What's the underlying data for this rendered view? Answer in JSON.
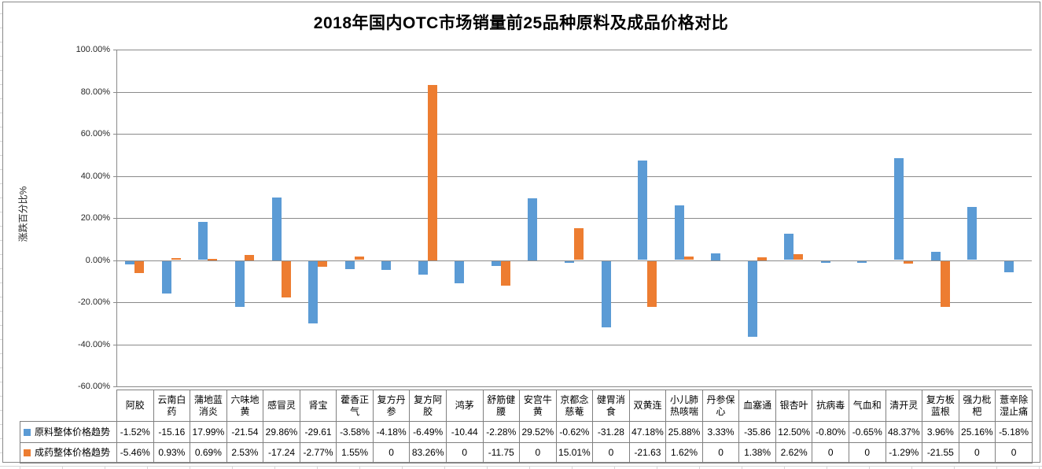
{
  "chart_data": {
    "type": "bar",
    "title": "2018年国内OTC市场销量前25品种原料及成品价格对比",
    "xlabel": "",
    "ylabel": "涨跌百分比%",
    "ylim": [
      -60,
      100
    ],
    "y_tick_step": 20,
    "y_tick_labels": [
      "100.00%",
      "80.00%",
      "60.00%",
      "40.00%",
      "20.00%",
      "0.00%",
      "-20.00%",
      "-40.00%",
      "-60.00%"
    ],
    "grid": true,
    "legend_position": "data-table-left",
    "categories": [
      "阿胶",
      "云南白药",
      "蒲地蓝消炎",
      "六味地黄",
      "感冒灵",
      "肾宝",
      "藿香正气",
      "复方丹参",
      "复方阿胶",
      "鸿茅",
      "舒筋健腰",
      "安宫牛黄",
      "京都念慈菴",
      "健胃消食",
      "双黄连",
      "小儿肺热咳喘",
      "丹参保心",
      "血塞通",
      "银杏叶",
      "抗病毒",
      "气血和",
      "清开灵",
      "复方板蓝根",
      "强力枇杷",
      "薏辛除湿止痛"
    ],
    "series": [
      {
        "name": "原料整体价格趋势",
        "color": "#5B9BD5",
        "values": [
          -1.52,
          -15.16,
          17.99,
          -21.54,
          29.86,
          -29.61,
          -3.58,
          -4.18,
          -6.49,
          -10.44,
          -2.28,
          29.52,
          -0.62,
          -31.28,
          47.18,
          25.88,
          3.33,
          -35.86,
          12.5,
          -0.8,
          -0.65,
          48.37,
          3.96,
          25.16,
          -5.18
        ],
        "display": [
          "-1.52%",
          "-15.16",
          "17.99%",
          "-21.54",
          "29.86%",
          "-29.61",
          "-3.58%",
          "-4.18%",
          "-6.49%",
          "-10.44",
          "-2.28%",
          "29.52%",
          "-0.62%",
          "-31.28",
          "47.18%",
          "25.88%",
          "3.33%",
          "-35.86",
          "12.50%",
          "-0.80%",
          "-0.65%",
          "48.37%",
          "3.96%",
          "25.16%",
          "-5.18%"
        ]
      },
      {
        "name": "成药整体价格趋势",
        "color": "#ED7D31",
        "values": [
          -5.46,
          0.93,
          0.69,
          2.53,
          -17.24,
          -2.77,
          1.55,
          0,
          83.26,
          0,
          -11.75,
          0,
          15.01,
          0,
          -21.63,
          1.62,
          0,
          1.38,
          2.62,
          0,
          0,
          -1.29,
          -21.55,
          0,
          0
        ],
        "display": [
          "-5.46%",
          "0.93%",
          "0.69%",
          "2.53%",
          "-17.24",
          "-2.77%",
          "1.55%",
          "0",
          "83.26%",
          "0",
          "-11.75",
          "0",
          "15.01%",
          "0",
          "-21.63",
          "1.62%",
          "0",
          "1.38%",
          "2.62%",
          "0",
          "0",
          "-1.29%",
          "-21.55",
          "0",
          "0"
        ]
      }
    ],
    "colors": {
      "gridline": "#8a8a8a",
      "axis": "#8a8a8a",
      "table_border": "#808080",
      "frame_border": "#898989",
      "text": "#1f1f1f"
    }
  }
}
